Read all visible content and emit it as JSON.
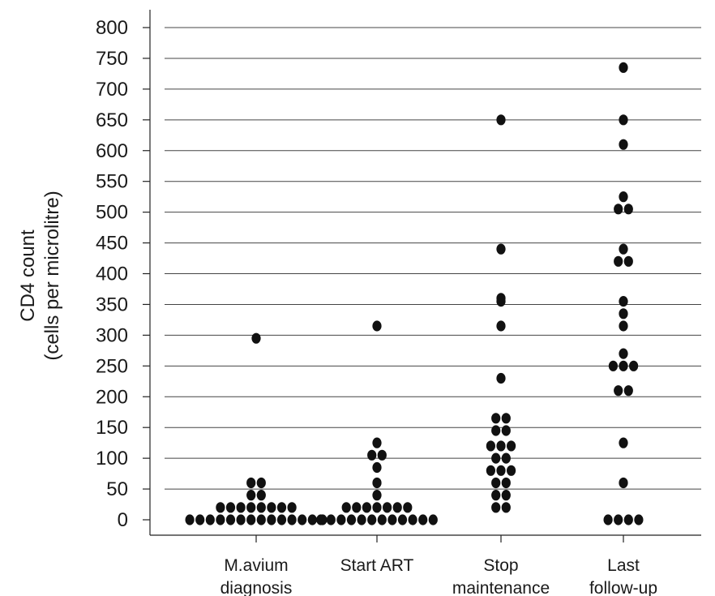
{
  "chart_data": {
    "type": "scatter",
    "subtype": "dot-plot",
    "ylabel_line1": "CD4 count",
    "ylabel_line2": "(cells per microlitre)",
    "ylim": [
      0,
      800
    ],
    "yticks": [
      0,
      50,
      100,
      150,
      200,
      250,
      300,
      350,
      400,
      450,
      500,
      550,
      600,
      650,
      700,
      750,
      800
    ],
    "grid": "horizontal",
    "categories": [
      {
        "line1": "M.avium",
        "line2": "diagnosis"
      },
      {
        "line1": "Start ART",
        "line2": ""
      },
      {
        "line1": "Stop",
        "line2": "maintenance"
      },
      {
        "line1": "Last",
        "line2": "follow-up"
      }
    ],
    "series": [
      {
        "values": [
          0,
          0,
          0,
          0,
          0,
          0,
          0,
          0,
          0,
          0,
          0,
          0,
          0,
          0,
          20,
          20,
          20,
          20,
          20,
          20,
          20,
          20,
          40,
          40,
          60,
          60,
          295
        ]
      },
      {
        "values": [
          0,
          0,
          0,
          0,
          0,
          0,
          0,
          0,
          0,
          0,
          0,
          0,
          20,
          20,
          20,
          20,
          20,
          20,
          20,
          40,
          60,
          85,
          105,
          105,
          125,
          315
        ]
      },
      {
        "values": [
          20,
          20,
          40,
          40,
          60,
          60,
          80,
          80,
          80,
          100,
          100,
          120,
          120,
          120,
          145,
          145,
          165,
          165,
          230,
          315,
          355,
          360,
          440,
          650
        ]
      },
      {
        "values": [
          0,
          0,
          0,
          0,
          60,
          125,
          210,
          210,
          250,
          250,
          250,
          270,
          315,
          335,
          355,
          420,
          420,
          440,
          505,
          505,
          525,
          610,
          650,
          735
        ]
      }
    ],
    "marker_color": "#111111",
    "grid_color": "#444444"
  }
}
